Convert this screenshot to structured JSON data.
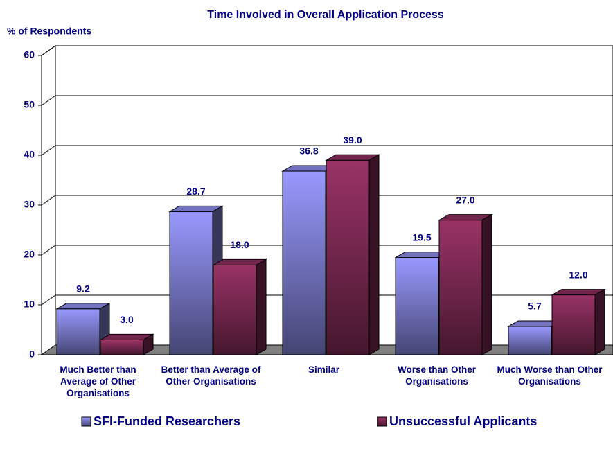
{
  "chart_data": {
    "type": "bar3d",
    "title": "Time Involved in Overall Application Process",
    "y_label": "% of Respondents",
    "categories": [
      "Much Better than Average of Other Organisations",
      "Better than Average of Other Organisations",
      "Similar",
      "Worse than Other Organisations",
      "Much Worse than Other Organisations"
    ],
    "series": [
      {
        "name": "SFI-Funded Researchers",
        "color": "#9999ff",
        "values": [
          9.2,
          28.7,
          36.8,
          19.5,
          5.7
        ],
        "value_labels": [
          "9.2",
          "28.7",
          "36.8",
          "19.5",
          "5.7"
        ]
      },
      {
        "name": "Unsuccessful Applicants",
        "color": "#993366",
        "values": [
          3.0,
          18.0,
          39.0,
          27.0,
          12.0
        ],
        "value_labels": [
          "3.0",
          "18.0",
          "39.0",
          "27.0",
          "12.0"
        ]
      }
    ],
    "ylim": [
      0,
      60
    ],
    "yticks": [
      0,
      10,
      20,
      30,
      40,
      50,
      60
    ],
    "grid": true
  }
}
